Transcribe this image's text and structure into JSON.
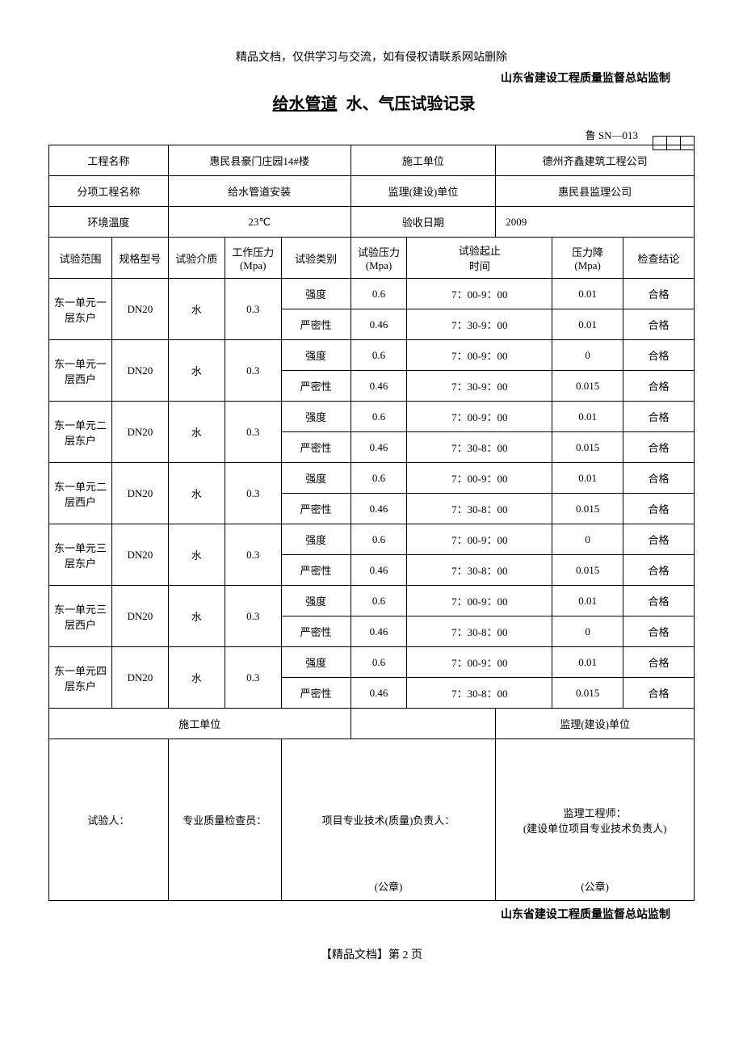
{
  "header_note": "精品文档，仅供学习与交流，如有侵权请联系网站删除",
  "org_line": "山东省建设工程质量监督总站监制",
  "title_prefix": "给水管道",
  "title_suffix": "水、气压试验记录",
  "doc_code": "鲁 SN—013",
  "info": {
    "project_name_label": "工程名称",
    "project_name": "惠民县豪门庄园14#楼",
    "contractor_label": "施工单位",
    "contractor": "德州齐鑫建筑工程公司",
    "subitem_label": "分项工程名称",
    "subitem": "给水管道安装",
    "supervisor_label": "监理(建设)单位",
    "supervisor": "惠民县监理公司",
    "env_temp_label": "环境温度",
    "env_temp": "23℃",
    "accept_date_label": "验收日期",
    "accept_date": "2009"
  },
  "columns": {
    "scope": "试验范围",
    "spec": "规格型号",
    "medium": "试验介质",
    "work_pressure": "工作压力\n(Mpa)",
    "test_type": "试验类别",
    "test_pressure": "试验压力\n(Mpa)",
    "test_time": "试验起止\n时间",
    "pressure_drop": "压力降\n(Mpa)",
    "conclusion": "检查结论"
  },
  "type_labels": {
    "strength": "强度",
    "tightness": "严密性"
  },
  "rows": [
    {
      "scope": "东一单元一层东户",
      "spec": "DN20",
      "medium": "水",
      "wp": "0.3",
      "sub": [
        {
          "tp": "0.6",
          "time": "7：00-9：00",
          "drop": "0.01",
          "res": "合格"
        },
        {
          "tp": "0.46",
          "time": "7：30-9：00",
          "drop": "0.01",
          "res": "合格"
        }
      ]
    },
    {
      "scope": "东一单元一层西户",
      "spec": "DN20",
      "medium": "水",
      "wp": "0.3",
      "sub": [
        {
          "tp": "0.6",
          "time": "7：00-9：00",
          "drop": "0",
          "res": "合格"
        },
        {
          "tp": "0.46",
          "time": "7：30-9：00",
          "drop": "0.015",
          "res": "合格"
        }
      ]
    },
    {
      "scope": "东一单元二层东户",
      "spec": "DN20",
      "medium": "水",
      "wp": "0.3",
      "sub": [
        {
          "tp": "0.6",
          "time": "7：00-9：00",
          "drop": "0.01",
          "res": "合格"
        },
        {
          "tp": "0.46",
          "time": "7：30-8：00",
          "drop": "0.015",
          "res": "合格"
        }
      ]
    },
    {
      "scope": "东一单元二层西户",
      "spec": "DN20",
      "medium": "水",
      "wp": "0.3",
      "sub": [
        {
          "tp": "0.6",
          "time": "7：00-9：00",
          "drop": "0.01",
          "res": "合格"
        },
        {
          "tp": "0.46",
          "time": "7：30-8：00",
          "drop": "0.015",
          "res": "合格"
        }
      ]
    },
    {
      "scope": "东一单元三层东户",
      "spec": "DN20",
      "medium": "水",
      "wp": "0.3",
      "sub": [
        {
          "tp": "0.6",
          "time": "7：00-9：00",
          "drop": "0",
          "res": "合格"
        },
        {
          "tp": "0.46",
          "time": "7：30-8：00",
          "drop": "0.015",
          "res": "合格"
        }
      ]
    },
    {
      "scope": "东一单元三层西户",
      "spec": "DN20",
      "medium": "水",
      "wp": "0.3",
      "sub": [
        {
          "tp": "0.6",
          "time": "7：00-9：00",
          "drop": "0.01",
          "res": "合格"
        },
        {
          "tp": "0.46",
          "time": "7：30-8：00",
          "drop": "0",
          "res": "合格"
        }
      ]
    },
    {
      "scope": "东一单元四层东户",
      "spec": "DN20",
      "medium": "水",
      "wp": "0.3",
      "sub": [
        {
          "tp": "0.6",
          "time": "7：00-9：00",
          "drop": "0.01",
          "res": "合格"
        },
        {
          "tp": "0.46",
          "time": "7：30-8：00",
          "drop": "0.015",
          "res": "合格"
        }
      ]
    }
  ],
  "footer": {
    "contractor_col": "施工单位",
    "supervisor_col": "监理(建设)单位",
    "tester": "试验人：",
    "qc": "专业质量检查员：",
    "tech_lead": "项目专业技术(质量)负责人：",
    "sup_eng": "监理工程师：",
    "sup_eng2": "(建设单位项目专业技术负责人)",
    "seal": "(公章)"
  },
  "footer_org": "山东省建设工程质量监督总站监制",
  "page_num": "【精品文档】第 2 页"
}
